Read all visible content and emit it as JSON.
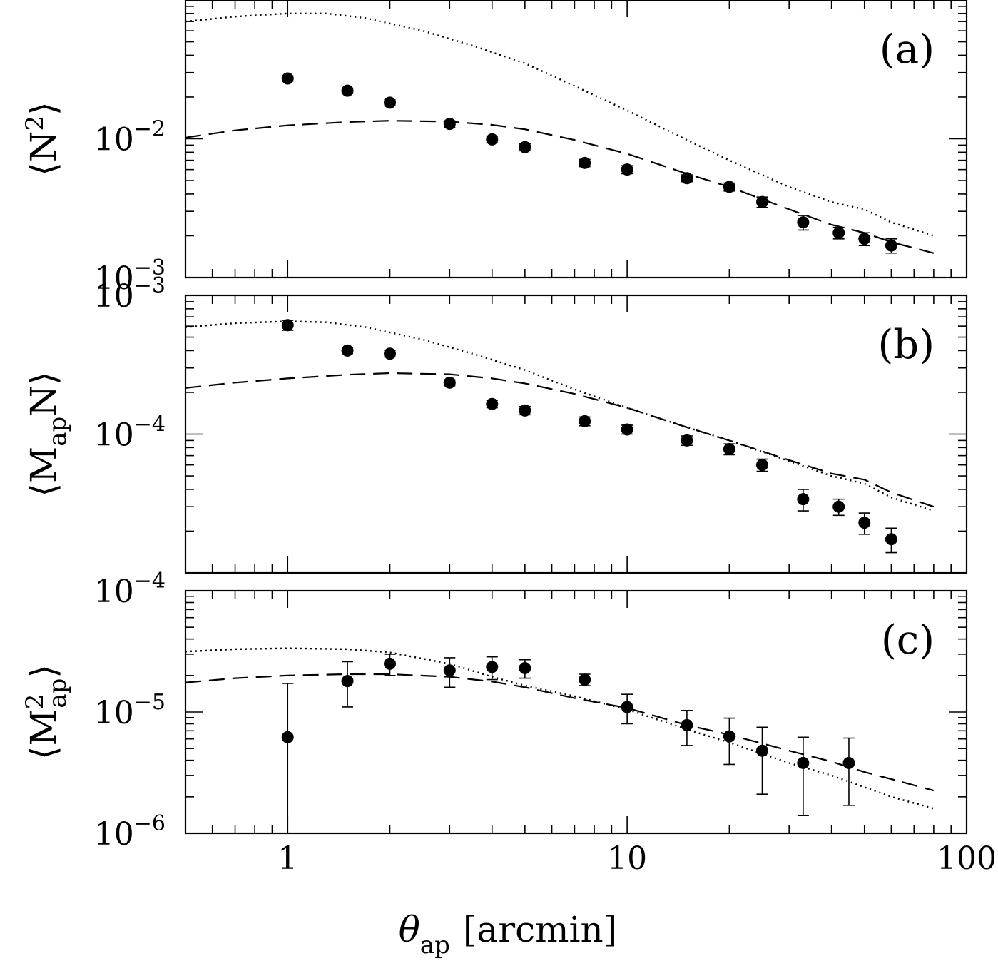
{
  "xlabel": {
    "main": "θ",
    "sub": "ap",
    "unit": "[arcmin]"
  },
  "x_tick_labels": [
    "1",
    "10",
    "100"
  ],
  "chart_data": [
    {
      "type": "scatter",
      "panel": "(a)",
      "ylabel": {
        "pre": "⟨N",
        "sup": "2",
        "post": "⟩"
      },
      "x_scale": "log",
      "y_scale": "log",
      "xlim": [
        0.5,
        100
      ],
      "ylim": [
        0.001,
        0.1
      ],
      "y_tick_labels": [
        {
          "base": "10",
          "exp": "−3",
          "v": 0.001
        },
        {
          "base": "10",
          "exp": "−2",
          "v": 0.01
        }
      ],
      "series": [
        {
          "style": "points",
          "x": [
            1,
            1.5,
            2,
            3,
            4,
            5,
            7.5,
            10,
            15,
            20,
            25,
            33,
            42,
            50,
            60
          ],
          "y": [
            0.0272,
            0.0222,
            0.0182,
            0.0128,
            0.0099,
            0.0087,
            0.0067,
            0.006,
            0.0052,
            0.0045,
            0.0035,
            0.0025,
            0.0021,
            0.0019,
            0.0017
          ],
          "yerr": [
            0.0012,
            0.001,
            0.0009,
            0.0007,
            0.0005,
            0.0005,
            0.0004,
            0.0004,
            0.0003,
            0.0003,
            0.0003,
            0.0003,
            0.0002,
            0.0002,
            0.0002
          ]
        },
        {
          "style": "dashed",
          "x": [
            0.5,
            0.7,
            1,
            1.5,
            2,
            3,
            4,
            5,
            7,
            10,
            15,
            20,
            30,
            40,
            50,
            60,
            80
          ],
          "y": [
            0.0102,
            0.0115,
            0.0125,
            0.0132,
            0.0135,
            0.0133,
            0.0126,
            0.0117,
            0.0098,
            0.0078,
            0.0056,
            0.0045,
            0.0031,
            0.0024,
            0.0021,
            0.0018,
            0.0015
          ]
        },
        {
          "style": "dotted",
          "x": [
            0.5,
            0.7,
            1,
            1.3,
            1.7,
            2.5,
            3.5,
            5,
            7,
            10,
            15,
            20,
            30,
            40,
            50,
            60,
            80
          ],
          "y": [
            0.07,
            0.076,
            0.08,
            0.08,
            0.074,
            0.06,
            0.047,
            0.035,
            0.024,
            0.016,
            0.0098,
            0.007,
            0.0045,
            0.0035,
            0.0031,
            0.0025,
            0.002
          ]
        }
      ]
    },
    {
      "type": "scatter",
      "panel": "(b)",
      "ylabel": {
        "pre": "⟨M",
        "sub": "ap",
        "post": "N⟩"
      },
      "x_scale": "log",
      "y_scale": "log",
      "xlim": [
        0.5,
        100
      ],
      "ylim": [
        1e-05,
        0.001
      ],
      "y_tick_labels": [
        {
          "base": "10",
          "exp": "−3",
          "v": 0.001
        },
        {
          "base": "10",
          "exp": "−4",
          "v": 0.0001
        }
      ],
      "series": [
        {
          "style": "points",
          "x": [
            1,
            1.5,
            2,
            3,
            4,
            5,
            7.5,
            10,
            15,
            20,
            25,
            33,
            42,
            50,
            60
          ],
          "y": [
            0.00061,
            0.0004,
            0.00038,
            0.000235,
            0.000165,
            0.000148,
            0.000124,
            0.000108,
            9e-05,
            7.8e-05,
            6e-05,
            3.4e-05,
            3e-05,
            2.3e-05,
            1.75e-05
          ],
          "yerr": [
            5e-05,
            2e-05,
            2e-05,
            1.2e-05,
            1e-05,
            1e-05,
            9e-06,
            8e-06,
            7e-06,
            7e-06,
            6e-06,
            6e-06,
            4e-06,
            4e-06,
            3.5e-06
          ]
        },
        {
          "style": "dashed",
          "x": [
            0.5,
            0.7,
            1,
            1.5,
            2,
            3,
            4,
            5,
            7,
            10,
            15,
            20,
            30,
            40,
            50,
            60,
            80
          ],
          "y": [
            0.000215,
            0.000235,
            0.000252,
            0.000268,
            0.000275,
            0.00027,
            0.000252,
            0.000232,
            0.000195,
            0.000155,
            0.000112,
            9e-05,
            6.5e-05,
            5.2e-05,
            4.7e-05,
            3.8e-05,
            3e-05
          ]
        },
        {
          "style": "dotted",
          "x": [
            0.5,
            0.7,
            1,
            1.3,
            1.7,
            2.5,
            3.5,
            5,
            7,
            10,
            15,
            20,
            30,
            40,
            50,
            60,
            80
          ],
          "y": [
            0.00059,
            0.00063,
            0.00065,
            0.00064,
            0.00059,
            0.00048,
            0.00038,
            0.00029,
            0.00021,
            0.000155,
            0.000112,
            9e-05,
            6.4e-05,
            5e-05,
            4.4e-05,
            3.5e-05,
            2.8e-05
          ]
        }
      ]
    },
    {
      "type": "scatter",
      "panel": "(c)",
      "ylabel": {
        "pre": "⟨M",
        "sup": "2",
        "sub": "ap",
        "post": "⟩"
      },
      "x_scale": "log",
      "y_scale": "log",
      "xlim": [
        0.5,
        100
      ],
      "ylim": [
        1e-06,
        0.0001
      ],
      "y_tick_labels": [
        {
          "base": "10",
          "exp": "−4",
          "v": 0.0001
        },
        {
          "base": "10",
          "exp": "−5",
          "v": 1e-05
        },
        {
          "base": "10",
          "exp": "−6",
          "v": 1e-06
        }
      ],
      "series": [
        {
          "style": "points",
          "x": [
            1,
            1.5,
            2,
            3,
            4,
            5,
            7.5,
            10,
            15,
            20,
            25,
            33,
            45
          ],
          "y": [
            6.2e-06,
            1.8e-05,
            2.5e-05,
            2.2e-05,
            2.35e-05,
            2.3e-05,
            1.85e-05,
            1.1e-05,
            7.8e-06,
            6.3e-06,
            4.8e-06,
            3.8e-06,
            3.8e-06
          ],
          "yerr_low": [
            6.2e-06,
            7e-06,
            5e-06,
            6e-06,
            5e-06,
            4e-06,
            2e-06,
            3e-06,
            2.5e-06,
            2.6e-06,
            2.7e-06,
            2.4e-06,
            2.1e-06
          ],
          "yerr_high": [
            1.1e-05,
            8e-06,
            5e-06,
            6e-06,
            5e-06,
            4e-06,
            2e-06,
            3e-06,
            2.5e-06,
            2.6e-06,
            2.7e-06,
            2.4e-06,
            2.3e-06
          ]
        },
        {
          "style": "dashed",
          "x": [
            0.5,
            0.7,
            1,
            1.5,
            2,
            3,
            4,
            5,
            7,
            10,
            15,
            20,
            30,
            40,
            50,
            60,
            80
          ],
          "y": [
            1.75e-05,
            1.9e-05,
            2e-05,
            2.05e-05,
            2.05e-05,
            1.95e-05,
            1.78e-05,
            1.6e-05,
            1.3e-05,
            1.08e-05,
            7.8e-06,
            6.5e-06,
            4.8e-06,
            3.9e-06,
            3.2e-06,
            2.8e-06,
            2.25e-06
          ]
        },
        {
          "style": "dotted",
          "x": [
            0.5,
            0.7,
            1,
            1.5,
            2,
            3,
            4,
            5,
            7,
            10,
            15,
            20,
            30,
            40,
            50,
            60,
            80
          ],
          "y": [
            3.15e-05,
            3.3e-05,
            3.35e-05,
            3.3e-05,
            3.1e-05,
            2.5e-05,
            1.95e-05,
            1.65e-05,
            1.35e-05,
            1.05e-05,
            7.2e-06,
            5.6e-06,
            3.8e-06,
            3e-06,
            2.4e-06,
            2e-06,
            1.6e-06
          ]
        }
      ]
    }
  ]
}
